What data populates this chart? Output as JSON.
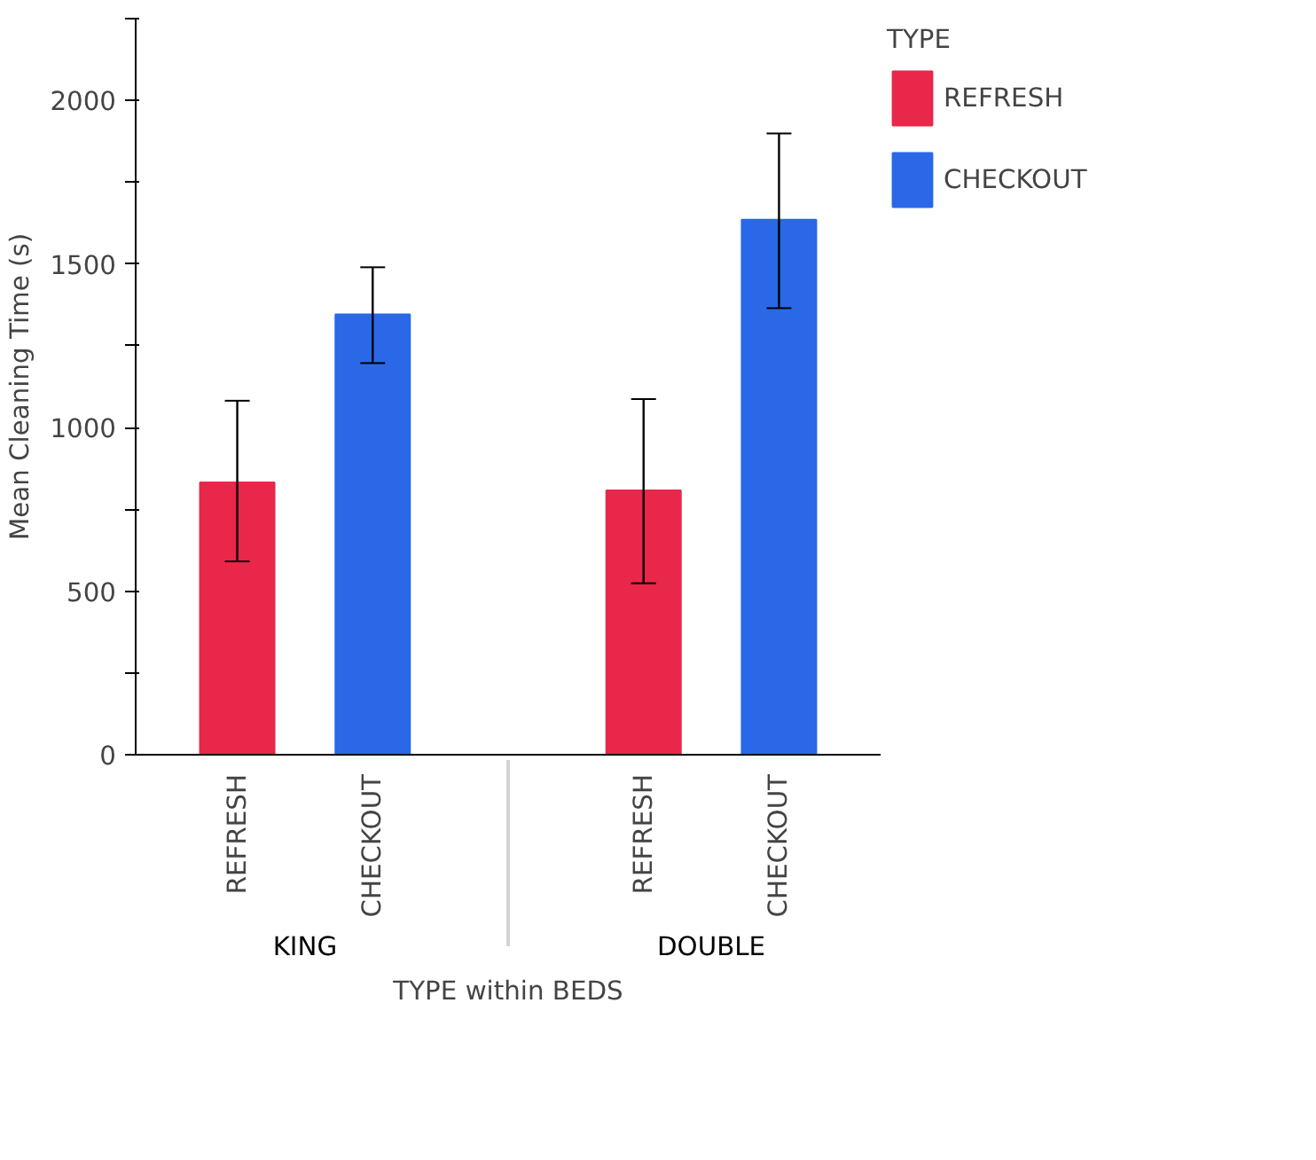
{
  "chart_data": {
    "type": "bar",
    "xlabel": "TYPE within BEDS",
    "ylabel": "Mean Cleaning Time (s)",
    "legend_title": "TYPE",
    "categories": [
      "KING",
      "DOUBLE"
    ],
    "series": [
      {
        "name": "REFRESH",
        "color": "#e8274a",
        "values": [
          832,
          808
        ],
        "errors": [
          [
            591,
            1082
          ],
          [
            524,
            1087
          ]
        ]
      },
      {
        "name": "CHECKOUT",
        "color": "#2a68e8",
        "values": [
          1346,
          1635
        ],
        "errors": [
          [
            1197,
            1490
          ],
          [
            1365,
            1899
          ]
        ]
      }
    ],
    "ylim": [
      0,
      2250
    ],
    "yticks": [
      0,
      {
        "value": 250,
        "label": null
      },
      500,
      {
        "value": 750,
        "label": null
      },
      1000,
      {
        "value": 1250,
        "label": null
      },
      1500,
      {
        "value": 1750,
        "label": null
      },
      2000,
      {
        "value": 2250,
        "label": null
      }
    ],
    "grid": false,
    "legend": "top right"
  }
}
